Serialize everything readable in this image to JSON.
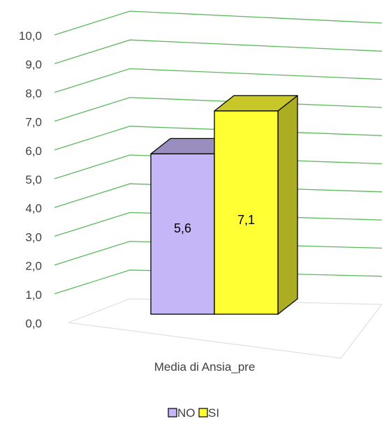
{
  "chart_data": {
    "type": "bar",
    "categories": [
      "Media di Ansia_pre"
    ],
    "series": [
      {
        "name": "NO",
        "values": [
          5.6
        ],
        "data_labels": [
          "5,6"
        ],
        "color": "#c5b6f8"
      },
      {
        "name": "SI",
        "values": [
          7.1
        ],
        "data_labels": [
          "7,1"
        ],
        "color": "#ffff33"
      }
    ],
    "y_ticks": [
      "0,0",
      "1,0",
      "2,0",
      "3,0",
      "4,0",
      "5,0",
      "6,0",
      "7,0",
      "8,0",
      "9,0",
      "10,0"
    ],
    "ylim": [
      0,
      10
    ],
    "gridlines": true,
    "gridline_color": "#5cb85c",
    "legend_position": "bottom",
    "style": "3d-clustered-column"
  }
}
